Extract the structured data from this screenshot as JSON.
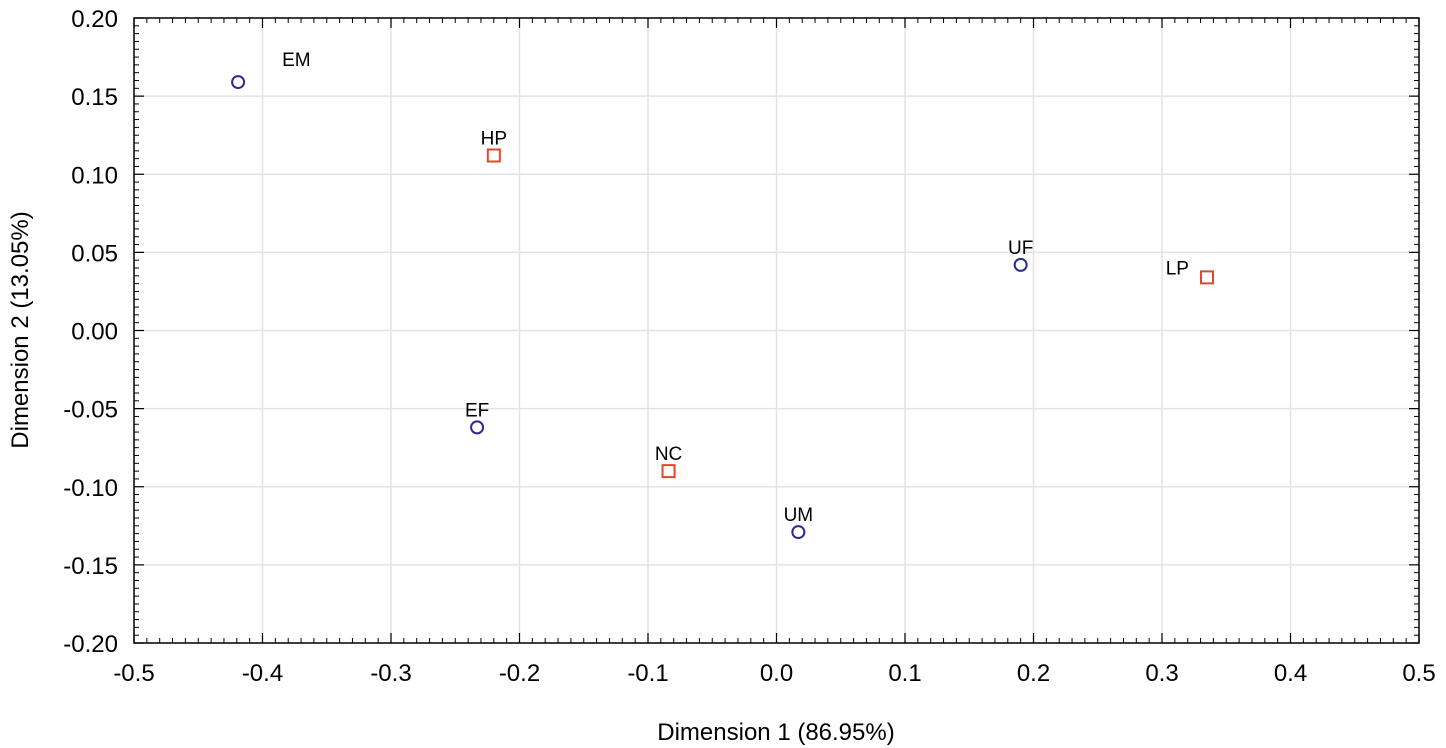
{
  "chart_data": {
    "type": "scatter",
    "title": "",
    "xlabel": "Dimension 1 (86.95%)",
    "ylabel": "Dimension 2 (13.05%)",
    "xlim": [
      -0.5,
      0.5
    ],
    "ylim": [
      -0.2,
      0.2
    ],
    "x_ticks": [
      -0.5,
      -0.4,
      -0.3,
      -0.2,
      -0.1,
      0.0,
      0.1,
      0.2,
      0.3,
      0.4,
      0.5
    ],
    "x_tick_labels": [
      "-0.5",
      "-0.4",
      "-0.3",
      "-0.2",
      "-0.1",
      "0.0",
      "0.1",
      "0.2",
      "0.3",
      "0.4",
      "0.5"
    ],
    "y_ticks": [
      0.2,
      0.15,
      0.1,
      0.05,
      0.0,
      -0.05,
      -0.1,
      -0.15,
      -0.2
    ],
    "y_tick_labels": [
      "0.20",
      "0.15",
      "0.10",
      "0.05",
      "0.00",
      "-0.05",
      "-0.10",
      "-0.15",
      "-0.20"
    ],
    "grid": true,
    "series": [
      {
        "marker": "circle",
        "color": "#2b2b8f",
        "points": [
          {
            "label": "EM",
            "x": -0.419,
            "y": 0.159,
            "label_pos": "upper-right"
          },
          {
            "label": "EF",
            "x": -0.233,
            "y": -0.062,
            "label_pos": "above"
          },
          {
            "label": "UM",
            "x": 0.017,
            "y": -0.129,
            "label_pos": "above"
          },
          {
            "label": "UF",
            "x": 0.19,
            "y": 0.042,
            "label_pos": "above"
          }
        ]
      },
      {
        "marker": "square",
        "color": "#e0472b",
        "points": [
          {
            "label": "HP",
            "x": -0.22,
            "y": 0.112,
            "label_pos": "above"
          },
          {
            "label": "NC",
            "x": -0.084,
            "y": -0.09,
            "label_pos": "above"
          },
          {
            "label": "LP",
            "x": 0.335,
            "y": 0.034,
            "label_pos": "left"
          }
        ]
      }
    ]
  }
}
